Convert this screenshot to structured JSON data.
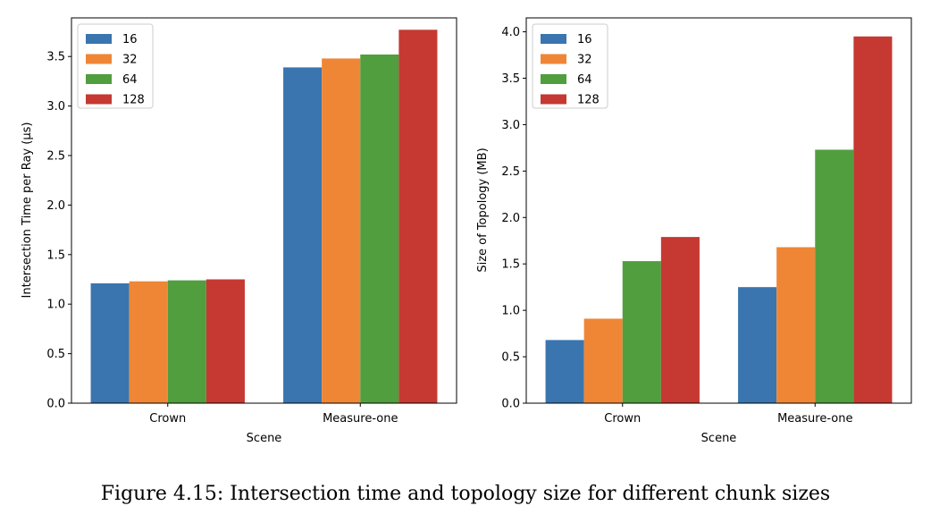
{
  "chart_data": [
    {
      "type": "bar",
      "categories": [
        "Crown",
        "Measure-one"
      ],
      "series": [
        {
          "name": "16",
          "values": [
            1.21,
            3.39
          ]
        },
        {
          "name": "32",
          "values": [
            1.23,
            3.48
          ]
        },
        {
          "name": "64",
          "values": [
            1.24,
            3.52
          ]
        },
        {
          "name": "128",
          "values": [
            1.25,
            3.77
          ]
        }
      ],
      "xlabel": "Scene",
      "ylabel": "Intersection Time per Ray (µs)",
      "ylim": [
        0,
        3.89
      ],
      "yticks": [
        "0.0",
        "0.5",
        "1.0",
        "1.5",
        "2.0",
        "2.5",
        "3.0",
        "3.5"
      ],
      "legend": "top-left",
      "grid": false
    },
    {
      "type": "bar",
      "categories": [
        "Crown",
        "Measure-one"
      ],
      "series": [
        {
          "name": "16",
          "values": [
            0.68,
            1.25
          ]
        },
        {
          "name": "32",
          "values": [
            0.91,
            1.68
          ]
        },
        {
          "name": "64",
          "values": [
            1.53,
            2.73
          ]
        },
        {
          "name": "128",
          "values": [
            1.79,
            3.95
          ]
        }
      ],
      "xlabel": "Scene",
      "ylabel": "Size of Topology (MB)",
      "ylim": [
        0,
        4.15
      ],
      "yticks": [
        "0.0",
        "0.5",
        "1.0",
        "1.5",
        "2.0",
        "2.5",
        "3.0",
        "3.5",
        "4.0"
      ],
      "legend": "top-left",
      "grid": false
    }
  ],
  "colors": [
    "#3a75af",
    "#ef8636",
    "#519e3e",
    "#c53932"
  ],
  "caption": "Figure 4.15: Intersection time and topology size for different chunk sizes"
}
